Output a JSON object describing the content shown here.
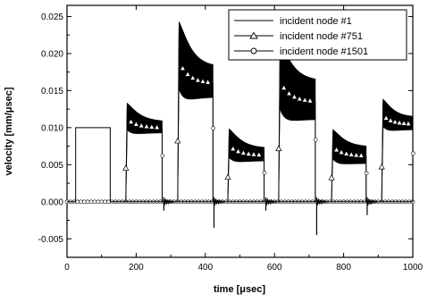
{
  "chart_data": {
    "type": "line",
    "title": "",
    "xlabel": "time [μsec]",
    "ylabel": "velocity [mm/μsec]",
    "xlim": [
      0,
      1000
    ],
    "ylim": [
      -0.0075,
      0.0265
    ],
    "xticks": [
      0,
      200,
      400,
      600,
      800,
      1000
    ],
    "xtick_labels": [
      "0",
      "200",
      "400",
      "600",
      "800",
      "1000"
    ],
    "yticks": [
      -0.005,
      0.0,
      0.005,
      0.01,
      0.015,
      0.02,
      0.025
    ],
    "ytick_labels": [
      "-0.005",
      "0.000",
      "0.005",
      "0.010",
      "0.015",
      "0.020",
      "0.025"
    ],
    "grid": false,
    "legend_position": "top-right",
    "series": [
      {
        "name": "incident node #1",
        "marker": "none",
        "x": [
          0,
          25,
          25,
          125,
          125,
          1000
        ],
        "y": [
          0,
          0,
          0.01,
          0.01,
          0,
          0
        ]
      },
      {
        "name": "incident node #751",
        "marker": "triangle",
        "segments": [
          {
            "t0": 170,
            "t1": 275,
            "peak": 0.013,
            "settle": 0.01,
            "band": 0.0008
          },
          {
            "t0": 320,
            "t1": 422,
            "peak": 0.0235,
            "settle": 0.016,
            "band": 0.0022
          },
          {
            "t0": 465,
            "t1": 570,
            "peak": 0.0095,
            "settle": 0.0063,
            "band": 0.0009
          },
          {
            "t0": 612,
            "t1": 718,
            "peak": 0.0205,
            "settle": 0.0135,
            "band": 0.0028
          },
          {
            "t0": 765,
            "t1": 865,
            "peak": 0.0093,
            "settle": 0.0062,
            "band": 0.0012
          },
          {
            "t0": 910,
            "t1": 1000,
            "peak": 0.0135,
            "settle": 0.0105,
            "band": 0.0009
          }
        ],
        "dips": [
          {
            "x": 280,
            "y": -0.0012
          },
          {
            "x": 425,
            "y": -0.0035
          },
          {
            "x": 575,
            "y": -0.0012
          },
          {
            "x": 722,
            "y": -0.0045
          },
          {
            "x": 868,
            "y": -0.0018
          }
        ]
      },
      {
        "name": "incident node #1501",
        "marker": "circle",
        "x": [
          0,
          1000
        ],
        "y": [
          0,
          0
        ]
      }
    ]
  }
}
